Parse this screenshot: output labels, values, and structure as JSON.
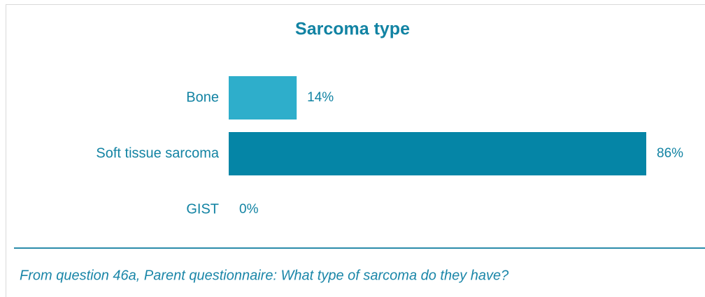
{
  "chart_data": {
    "type": "barh",
    "title": "Sarcoma type",
    "categories": [
      "Bone",
      "Soft tissue sarcoma",
      "GIST"
    ],
    "values": [
      14,
      86,
      0
    ],
    "value_labels": [
      "14%",
      "86%",
      "0%"
    ],
    "colors": [
      "#2eaecb",
      "#0585a6",
      "#0585a6"
    ],
    "xlim": [
      0,
      86
    ],
    "footnote": "From question 46a, Parent questionnaire: What type of sarcoma do they have?"
  }
}
